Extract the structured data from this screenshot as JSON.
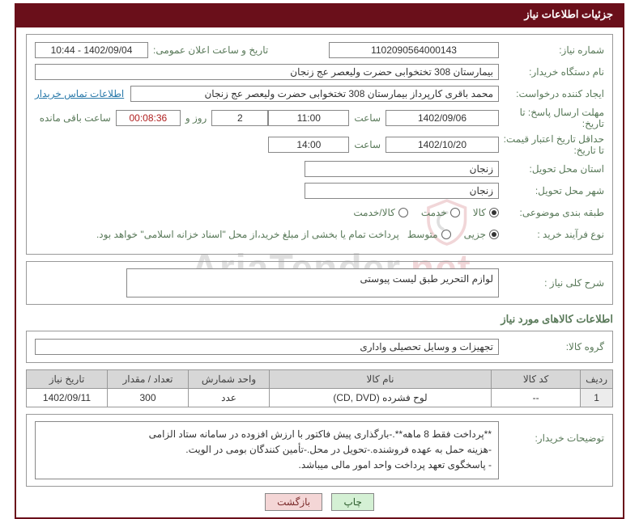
{
  "titleBar": "جزئیات اطلاعات نیاز",
  "labels": {
    "needNo": "شماره نیاز:",
    "announceDate": "تاریخ و ساعت اعلان عمومی:",
    "buyerOrg": "نام دستگاه خریدار:",
    "requester": "ایجاد کننده درخواست:",
    "deadline": "مهلت ارسال پاسخ: تا تاریخ:",
    "hour": "ساعت",
    "daysAnd": "روز و",
    "remaining": "ساعت باقی مانده",
    "validUntil": "حداقل تاریخ اعتبار قیمت: تا تاریخ:",
    "province": "استان محل تحویل:",
    "city": "شهر محل تحویل:",
    "category": "طبقه بندی موضوعی:",
    "purchaseType": "نوع فرآیند خرید :",
    "buyerContact": "اطلاعات تماس خریدار",
    "overallDesc": "شرح کلی نیاز :",
    "itemsSection": "اطلاعات کالاهای مورد نیاز",
    "itemGroup": "گروه کالا:",
    "buyerNotes": "توضیحات خریدار:"
  },
  "fields": {
    "needNo": "1102090564000143",
    "announceDate": "1402/09/04 - 10:44",
    "buyerOrg": "بیمارستان 308 تختخوابی حضرت ولیعصر عج  زنجان",
    "requester": "محمد باقری کارپرداز بیمارستان 308 تختخوابی حضرت ولیعصر عج  زنجان",
    "deadlineDate": "1402/09/06",
    "deadlineHour": "11:00",
    "daysLeft": "2",
    "countdown": "00:08:36",
    "validDate": "1402/10/20",
    "validHour": "14:00",
    "province": "زنجان",
    "city": "زنجان",
    "overallDesc": "لوازم التحریر طبق لیست پیوستی",
    "itemGroup": "تجهیزات و وسایل تحصیلی واداری",
    "buyerNotes": "**پرداخت فقط 8 ماهه**.-بارگذاری پیش فاکتور با ارزش افزوده در سامانه ستاد الزامی\n-هزینه حمل به عهده فروشنده.-تحویل در محل.-تأمین کنندگان بومی در الویت.\n- پاسخگوی تعهد پرداخت واحد امور مالی میباشد."
  },
  "radios": {
    "cat": [
      {
        "label": "کالا",
        "checked": true
      },
      {
        "label": "خدمت",
        "checked": false
      },
      {
        "label": "کالا/خدمت",
        "checked": false
      }
    ],
    "purchase": [
      {
        "label": "جزیی",
        "checked": true
      },
      {
        "label": "متوسط",
        "checked": false
      }
    ],
    "purchaseNote": "پرداخت تمام یا بخشی از مبلغ خرید،از محل \"اسناد خزانه اسلامی\" خواهد بود."
  },
  "table": {
    "headers": [
      "ردیف",
      "کد کالا",
      "نام کالا",
      "واحد شمارش",
      "تعداد / مقدار",
      "تاریخ نیاز"
    ],
    "row": [
      "1",
      "--",
      "لوح فشرده (CD, DVD)",
      "عدد",
      "300",
      "1402/09/11"
    ]
  },
  "buttons": {
    "print": "چاپ",
    "back": "بازگشت"
  },
  "watermark": {
    "t1": "AriaTender",
    "t2": ".net"
  }
}
